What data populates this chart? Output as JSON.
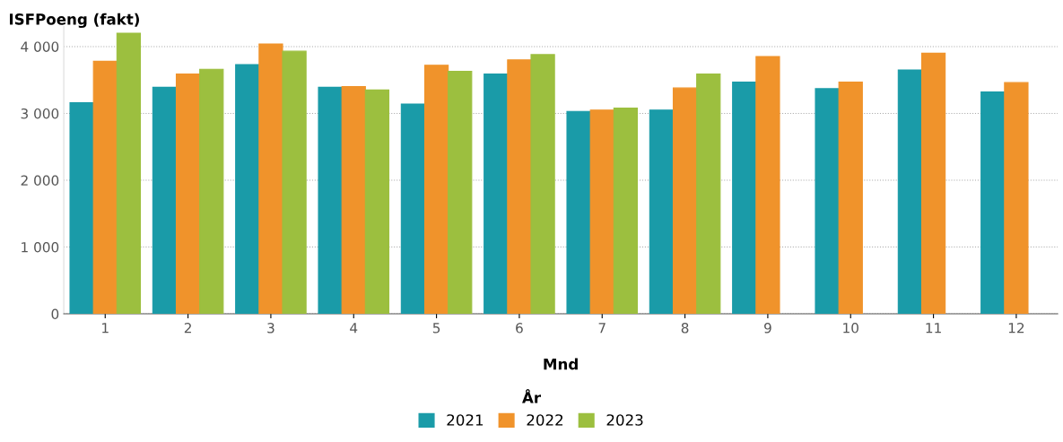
{
  "chart_data": {
    "type": "bar",
    "xlabel": "Mnd",
    "ylabel": "ISFPoeng (fakt)",
    "legend_title": "År",
    "categories": [
      "1",
      "2",
      "3",
      "4",
      "5",
      "6",
      "7",
      "8",
      "9",
      "10",
      "11",
      "12"
    ],
    "series": [
      {
        "name": "2021",
        "color": "#1a9ba8",
        "values": [
          3160,
          3390,
          3730,
          3390,
          3140,
          3590,
          3030,
          3050,
          3470,
          3370,
          3650,
          3320
        ]
      },
      {
        "name": "2022",
        "color": "#f0932b",
        "values": [
          3780,
          3590,
          4040,
          3400,
          3720,
          3800,
          3050,
          3380,
          3850,
          3470,
          3900,
          3460
        ]
      },
      {
        "name": "2023",
        "color": "#9cbf3f",
        "values": [
          4200,
          3660,
          3930,
          3350,
          3630,
          3880,
          3080,
          3590,
          null,
          null,
          null,
          null
        ]
      }
    ],
    "ylim": [
      0,
      4300
    ],
    "yticks": [
      {
        "value": 0,
        "label": "0"
      },
      {
        "value": 1000,
        "label": "1 000"
      },
      {
        "value": 2000,
        "label": "2 000"
      },
      {
        "value": 3000,
        "label": "3 000"
      },
      {
        "value": 4000,
        "label": "4 000"
      }
    ],
    "grid": "y",
    "legend": "bottom"
  }
}
